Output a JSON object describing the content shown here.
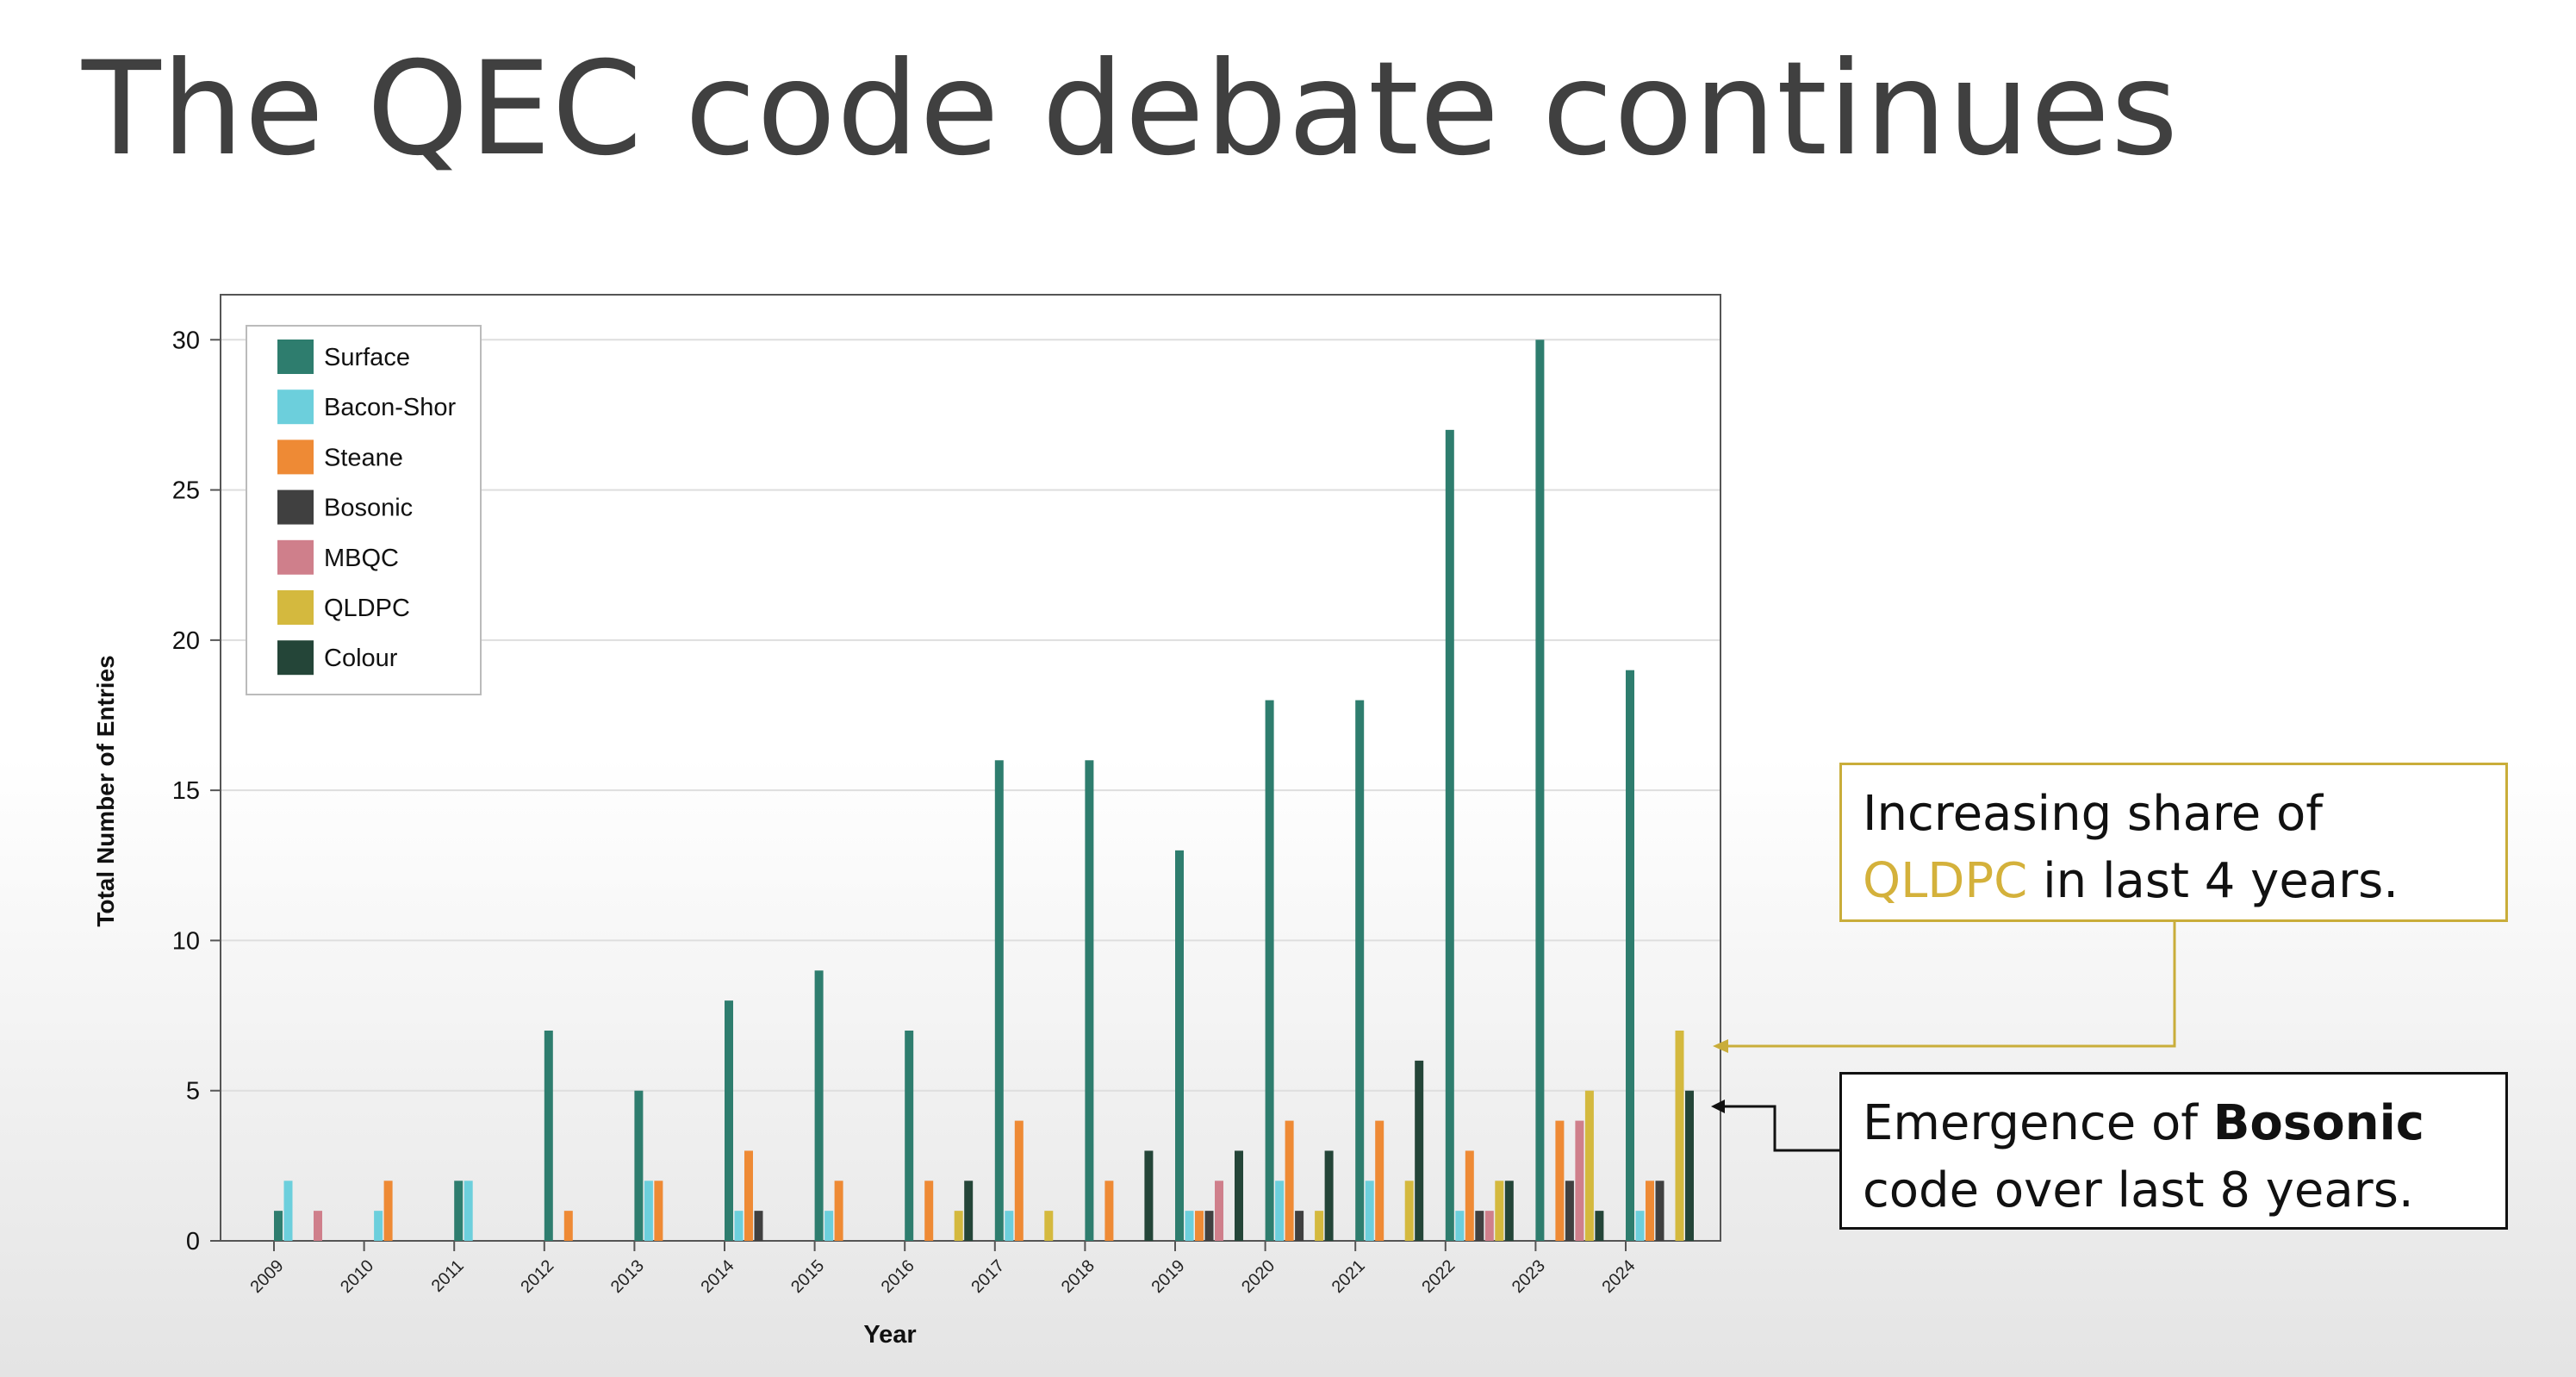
{
  "slide": {
    "title": "The QEC code debate continues"
  },
  "callouts": {
    "qldpc": {
      "prefix": "Increasing share of",
      "highlight": "QLDPC",
      "suffix": "in last 4 years.",
      "color": "#d4b13b"
    },
    "bosonic": {
      "prefix": "Emergence of",
      "highlight": "Bosonic",
      "suffix": "code over last 8 years.",
      "color": "#1a1a1a"
    }
  },
  "chart_data": {
    "type": "bar",
    "xlabel": "Year",
    "ylabel": "Total Number of Entries",
    "ylim": [
      0,
      31.5
    ],
    "yticks": [
      0,
      5,
      10,
      15,
      20,
      25,
      30
    ],
    "grid": true,
    "legend_position": "top-left",
    "categories": [
      "2009",
      "2010",
      "2011",
      "2012",
      "2013",
      "2014",
      "2015",
      "2016",
      "2017",
      "2018",
      "2019",
      "2020",
      "2021",
      "2022",
      "2023",
      "2024"
    ],
    "series": [
      {
        "name": "Surface",
        "color": "#2e7d6e",
        "values": [
          1,
          0,
          2,
          7,
          5,
          8,
          9,
          7,
          16,
          16,
          13,
          18,
          18,
          27,
          30,
          19
        ]
      },
      {
        "name": "Bacon-Shor",
        "color": "#6ccfdc",
        "values": [
          2,
          1,
          2,
          0,
          2,
          1,
          1,
          0,
          1,
          0,
          1,
          2,
          2,
          1,
          0,
          1
        ]
      },
      {
        "name": "Steane",
        "color": "#ee8a35",
        "values": [
          0,
          2,
          0,
          1,
          2,
          3,
          2,
          2,
          4,
          2,
          1,
          4,
          4,
          3,
          4,
          2
        ]
      },
      {
        "name": "Bosonic",
        "color": "#404040",
        "values": [
          0,
          0,
          0,
          0,
          0,
          1,
          0,
          0,
          0,
          0,
          1,
          1,
          0,
          1,
          2,
          2
        ]
      },
      {
        "name": "MBQC",
        "color": "#cf7f8b",
        "values": [
          1,
          0,
          0,
          0,
          0,
          0,
          0,
          0,
          0,
          0,
          2,
          0,
          0,
          1,
          4,
          0
        ]
      },
      {
        "name": "QLDPC",
        "color": "#d4b93e",
        "values": [
          0,
          0,
          0,
          0,
          0,
          0,
          0,
          1,
          1,
          0,
          0,
          1,
          2,
          2,
          5,
          7
        ]
      },
      {
        "name": "Colour",
        "color": "#244538",
        "values": [
          0,
          0,
          0,
          0,
          0,
          0,
          0,
          2,
          0,
          3,
          3,
          3,
          6,
          2,
          1,
          5
        ]
      }
    ]
  }
}
